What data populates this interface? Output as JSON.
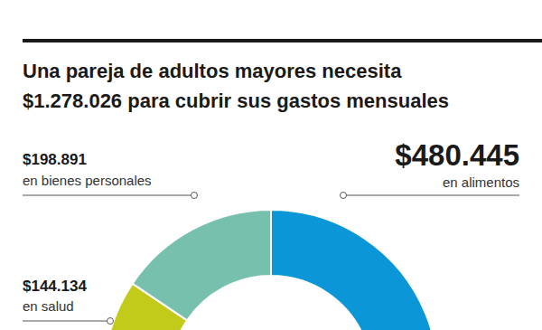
{
  "chart_data": {
    "type": "donut",
    "title": [
      "Una pareja de adultos mayores necesita",
      "$1.278.026 para cubrir sus gastos mensuales"
    ],
    "total": 1278026,
    "categories": [
      "en salud",
      "en bienes personales",
      "en alimentos"
    ],
    "values": [
      144134,
      198891,
      480445
    ],
    "value_labels": [
      "$144.134",
      "$198.891",
      "$480.445"
    ],
    "colors": [
      "#c3cb1a",
      "#78c0ae",
      "#0b96d8"
    ],
    "data_labels": true
  }
}
